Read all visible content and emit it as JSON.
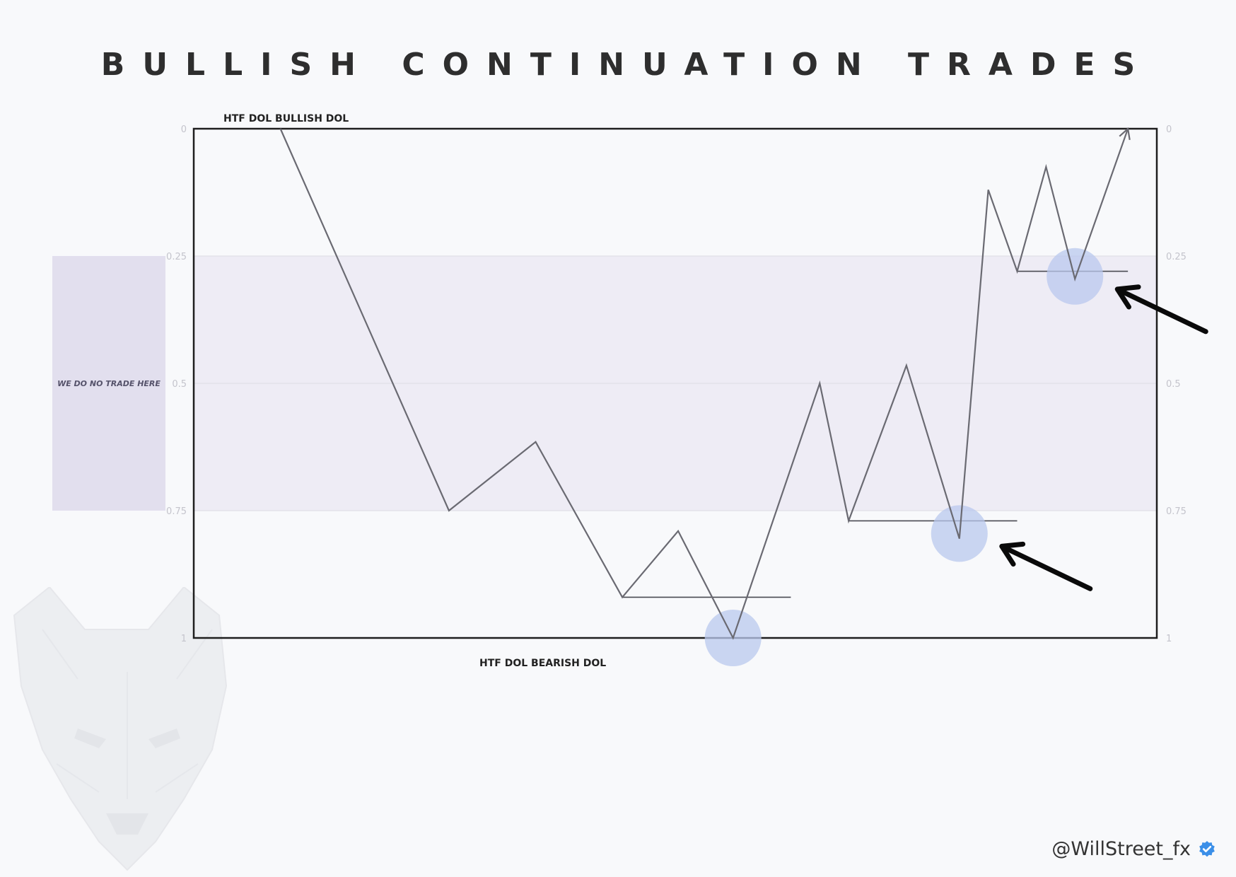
{
  "title": "BULLISH CONTINUATION TRADES",
  "no_trade_label": "WE DO NO TRADE HERE",
  "handle": "@WillStreet_fx",
  "icons": {
    "verified": "verified-badge-icon",
    "watermark": "wolf-watermark-icon",
    "pointer": "arrow-pointer-icon"
  },
  "colors": {
    "price_line": "#6a6a72",
    "highlight": "#b9c8ee",
    "zone": "#eeecf5",
    "no_trade_box": "#e2dfee",
    "verified": "#3b8fe8"
  },
  "chart_data": {
    "type": "line",
    "title": "BULLISH CONTINUATION TRADES",
    "top_label": "HTF DOL BULLISH DOL",
    "bottom_label": "HTF DOL BEARISH DOL",
    "y_axis": {
      "ticks": [
        0,
        0.25,
        0.5,
        0.75,
        1
      ],
      "tick_labels": [
        "0",
        "0.25",
        "0.5",
        "0.75",
        "1"
      ],
      "ylim": [
        0,
        1
      ],
      "inverted": true
    },
    "x_range": [
      0,
      100
    ],
    "grid": true,
    "shaded_zone": [
      0.25,
      0.75
    ],
    "price_path": [
      [
        9,
        0
      ],
      [
        26.5,
        0.75
      ],
      [
        35.5,
        0.615
      ],
      [
        44.5,
        0.92
      ],
      [
        50.3,
        0.79
      ],
      [
        56,
        1.0
      ],
      [
        65,
        0.5
      ],
      [
        68,
        0.77
      ],
      [
        74,
        0.465
      ],
      [
        79.5,
        0.805
      ],
      [
        82.5,
        0.12
      ],
      [
        85.5,
        0.28
      ],
      [
        88.5,
        0.075
      ],
      [
        91.5,
        0.295
      ],
      [
        97,
        0
      ]
    ],
    "horizontal_levels": [
      {
        "x": [
          44.5,
          62
        ],
        "y": 0.92
      },
      {
        "x": [
          68,
          85.5
        ],
        "y": 0.77
      },
      {
        "x": [
          85.5,
          97
        ],
        "y": 0.28
      }
    ],
    "highlights": [
      {
        "x": 56,
        "y": 1.0
      },
      {
        "x": 79.5,
        "y": 0.795
      },
      {
        "x": 91.5,
        "y": 0.29
      }
    ]
  }
}
